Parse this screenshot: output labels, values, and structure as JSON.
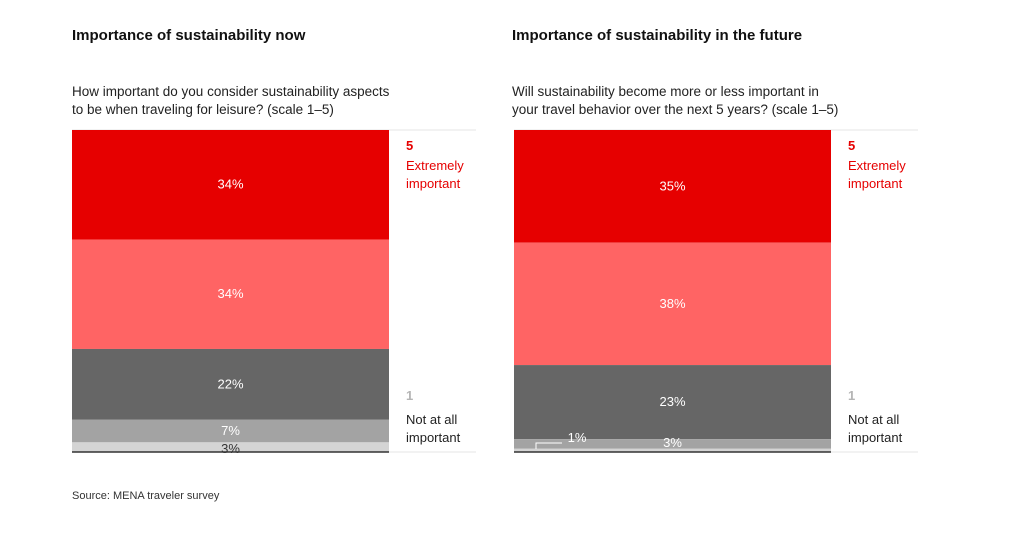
{
  "source": "Source: MENA traveler survey",
  "colors": {
    "level5": "#e60000",
    "level4": "#ff6464",
    "level3": "#666666",
    "level2": "#a3a3a3",
    "level1": "#d4d4d4",
    "accent_text": "#e60000",
    "muted_text": "#b5b5b5"
  },
  "panels": [
    {
      "title": "Importance of sustainability now",
      "question_line1": "How important do you consider sustainability aspects",
      "question_line2": "to be when traveling for leisure? (scale 1–5)"
    },
    {
      "title": "Importance of sustainability in the future",
      "question_line1": "Will sustainability become more or less important in",
      "question_line2": "your travel behavior over the next 5 years? (scale 1–5)"
    }
  ],
  "chart_data": [
    {
      "type": "bar",
      "stacked": true,
      "title": "Importance of sustainability now",
      "series": [
        {
          "level": 5,
          "value": 34,
          "label": "34%"
        },
        {
          "level": 4,
          "value": 34,
          "label": "34%"
        },
        {
          "level": 3,
          "value": 22,
          "label": "22%"
        },
        {
          "level": 2,
          "value": 7,
          "label": "7%"
        },
        {
          "level": 1,
          "value": 3,
          "label": "3%"
        }
      ],
      "scale_top": {
        "number": "5",
        "label_line1": "Extremely",
        "label_line2": "important"
      },
      "scale_bottom": {
        "number": "1",
        "label_line1": "Not at all",
        "label_line2": "important"
      }
    },
    {
      "type": "bar",
      "stacked": true,
      "title": "Importance of sustainability in the future",
      "series": [
        {
          "level": 5,
          "value": 35,
          "label": "35%"
        },
        {
          "level": 4,
          "value": 38,
          "label": "38%"
        },
        {
          "level": 3,
          "value": 23,
          "label": "23%"
        },
        {
          "level": 2,
          "value": 3,
          "label": "3%"
        },
        {
          "level": 1,
          "value": 1,
          "label": "1%"
        }
      ],
      "scale_top": {
        "number": "5",
        "label_line1": "Extremely",
        "label_line2": "important"
      },
      "scale_bottom": {
        "number": "1",
        "label_line1": "Not at all",
        "label_line2": "important"
      }
    }
  ]
}
